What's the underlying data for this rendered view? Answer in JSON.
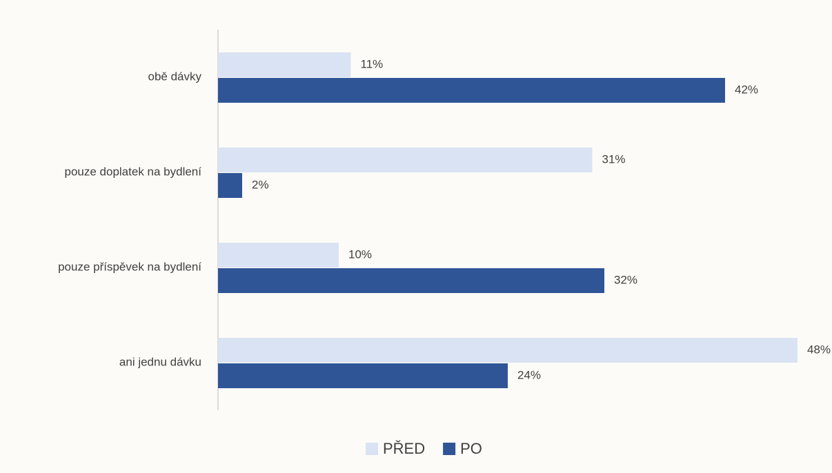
{
  "chart_data": {
    "type": "barh",
    "categories": [
      "obě dávky",
      "pouze doplatek na bydlení",
      "pouze příspěvek na bydlení",
      "ani jednu dávku"
    ],
    "series": [
      {
        "name": "PŘED",
        "color": "#dae3f3",
        "values": [
          11,
          31,
          10,
          48
        ],
        "value_labels": [
          "11%",
          "31%",
          "10%",
          "48%"
        ]
      },
      {
        "name": "PO",
        "color": "#2f5597",
        "values": [
          42,
          2,
          32,
          24
        ],
        "value_labels": [
          "42%",
          "2%",
          "32%",
          "24%"
        ]
      }
    ],
    "legend": "bottom"
  }
}
